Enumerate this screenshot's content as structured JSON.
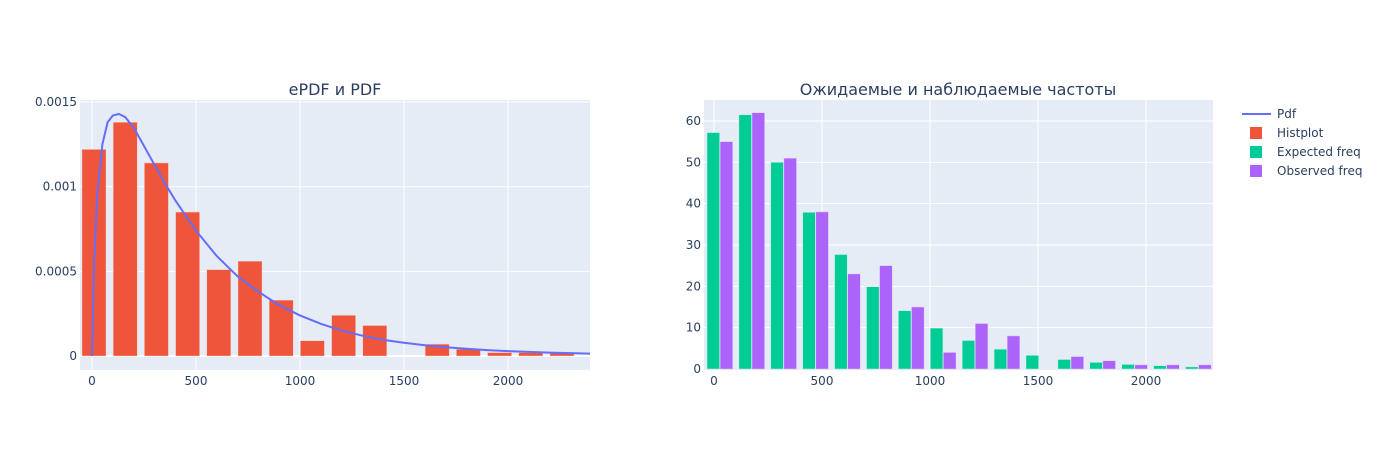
{
  "chart_data": [
    {
      "type": "bar",
      "title": "ePDF и PDF",
      "xlabel": "",
      "ylabel": "",
      "xlim": [
        -50,
        2400
      ],
      "ylim": [
        -7e-05,
        0.00153
      ],
      "x_ticks": [
        0,
        500,
        1000,
        1500,
        2000
      ],
      "x_tick_labels": [
        "0",
        "500",
        "1000",
        "1500",
        "2000"
      ],
      "y_ticks": [
        0,
        0.0005,
        0.001,
        0.0015
      ],
      "y_tick_labels": [
        "0",
        "0.0005",
        "0.001",
        "0.0015"
      ],
      "grid": true,
      "series": [
        {
          "name": "Histplot",
          "type": "bar",
          "color": "#EF553B",
          "x": [
            0,
            150,
            300,
            450,
            600,
            750,
            900,
            1050,
            1200,
            1350,
            1500,
            1650,
            1800,
            1950,
            2100,
            2250
          ],
          "width": 120,
          "values": [
            0.00122,
            0.00138,
            0.00114,
            0.00085,
            0.00051,
            0.00056,
            0.00033,
            9e-05,
            0.00024,
            0.00018,
            0.0,
            7e-05,
            4e-05,
            2e-05,
            2e-05,
            2e-05
          ]
        },
        {
          "name": "Pdf",
          "type": "line",
          "color": "#636EFA",
          "x": [
            0,
            10,
            25,
            50,
            75,
            100,
            130,
            160,
            200,
            250,
            300,
            350,
            400,
            450,
            500,
            600,
            700,
            800,
            900,
            1000,
            1100,
            1200,
            1300,
            1400,
            1500,
            1600,
            1700,
            1800,
            1900,
            2000,
            2100,
            2200,
            2300,
            2400
          ],
          "values": [
            0.0,
            0.00055,
            0.00095,
            0.00125,
            0.00138,
            0.00142,
            0.00143,
            0.00141,
            0.00135,
            0.00124,
            0.00113,
            0.00102,
            0.00092,
            0.00083,
            0.00074,
            0.00059,
            0.00047,
            0.00038,
            0.0003,
            0.00024,
            0.00019,
            0.00015,
            0.00012,
            9.5e-05,
            7.8e-05,
            6.4e-05,
            5.2e-05,
            4.3e-05,
            3.5e-05,
            2.9e-05,
            2.4e-05,
            2e-05,
            1.7e-05,
            1.4e-05
          ]
        }
      ]
    },
    {
      "type": "bar",
      "title": "Ожидаемые и наблюдаемые частоты",
      "xlabel": "",
      "ylabel": "",
      "xlim": [
        -50,
        2300
      ],
      "ylim": [
        0,
        65
      ],
      "x_ticks": [
        0,
        500,
        1000,
        1500,
        2000
      ],
      "x_tick_labels": [
        "0",
        "500",
        "1000",
        "1500",
        "2000"
      ],
      "y_ticks": [
        0,
        10,
        20,
        30,
        40,
        50,
        60
      ],
      "y_tick_labels": [
        "0",
        "10",
        "20",
        "30",
        "40",
        "50",
        "60"
      ],
      "grid": true,
      "categories": [
        0,
        150,
        300,
        450,
        600,
        750,
        900,
        1050,
        1200,
        1350,
        1500,
        1650,
        1800,
        1950,
        2100,
        2250
      ],
      "series": [
        {
          "name": "Expected freq",
          "color": "#00CC96",
          "values": [
            57.2,
            61.5,
            50.0,
            37.9,
            27.7,
            19.9,
            14.1,
            9.9,
            6.9,
            4.8,
            3.3,
            2.3,
            1.6,
            1.1,
            0.8,
            0.5
          ]
        },
        {
          "name": "Observed freq",
          "color": "#AB63FA",
          "values": [
            55,
            62,
            51,
            38,
            23,
            25,
            15,
            4,
            11,
            8,
            0,
            3,
            2,
            1,
            1,
            1
          ]
        }
      ]
    }
  ],
  "legend": {
    "items": [
      {
        "label": "Pdf",
        "kind": "line",
        "color": "#636EFA"
      },
      {
        "label": "Histplot",
        "kind": "box",
        "color": "#EF553B"
      },
      {
        "label": "Expected freq",
        "kind": "box",
        "color": "#00CC96"
      },
      {
        "label": "Observed freq",
        "kind": "box",
        "color": "#AB63FA"
      }
    ]
  },
  "colors": {
    "plot_bg": "#E5ECF6",
    "grid": "#FFFFFF",
    "text": "#2a3f5f"
  }
}
